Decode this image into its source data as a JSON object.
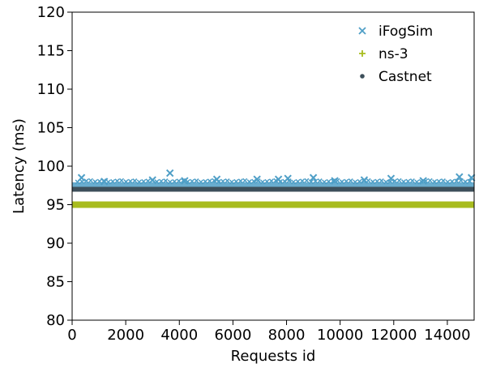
{
  "chart_data": {
    "type": "scatter",
    "title": "",
    "xlabel": "Requests id",
    "ylabel": "Latency (ms)",
    "xlim": [
      0,
      15000
    ],
    "ylim": [
      80,
      120
    ],
    "xticks": [
      0,
      2000,
      4000,
      6000,
      8000,
      10000,
      12000,
      14000
    ],
    "xtick_labels": [
      "0",
      "2000",
      "4000",
      "6000",
      "8000",
      "10000",
      "12000",
      "14000"
    ],
    "yticks": [
      80,
      85,
      90,
      95,
      100,
      105,
      110,
      115,
      120
    ],
    "ytick_labels": [
      "80",
      "85",
      "90",
      "95",
      "100",
      "105",
      "110",
      "115",
      "120"
    ],
    "grid": false,
    "legend_position": "top-right",
    "series": [
      {
        "name": "iFogSim",
        "marker": "x",
        "color": "#4f9fc7",
        "band": [
          97.2,
          97.9
        ],
        "outliers": [
          [
            350,
            98.5
          ],
          [
            1200,
            98.0
          ],
          [
            3000,
            98.2
          ],
          [
            3650,
            99.1
          ],
          [
            4200,
            98.1
          ],
          [
            5400,
            98.3
          ],
          [
            6900,
            98.3
          ],
          [
            7700,
            98.3
          ],
          [
            8050,
            98.4
          ],
          [
            9000,
            98.5
          ],
          [
            9800,
            98.1
          ],
          [
            10900,
            98.2
          ],
          [
            11900,
            98.4
          ],
          [
            13100,
            98.1
          ],
          [
            14450,
            98.6
          ],
          [
            14900,
            98.5
          ]
        ]
      },
      {
        "name": "ns-3",
        "marker": "+",
        "color": "#a8bc1e",
        "value": 95.0
      },
      {
        "name": "Castnet",
        "marker": "dot",
        "color": "#3d4f5a",
        "value": 97.0
      }
    ]
  }
}
